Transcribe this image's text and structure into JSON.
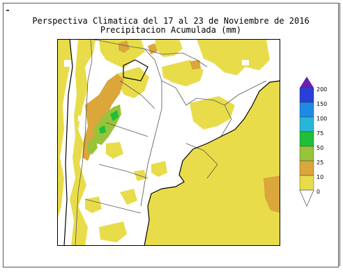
{
  "title": {
    "line1": "Perspectiva Climatica del 17 al 23 de Noviembre de 2016",
    "line2": "Precipitacion Acumulada (mm)"
  },
  "legend": {
    "levels": [
      "200",
      "150",
      "100",
      "75",
      "50",
      "25",
      "10",
      "0"
    ],
    "colors": {
      "above_200": "#6a1fb3",
      "150_200": "#2a3fd8",
      "100_150": "#1f8ae6",
      "75_100": "#27b7d6",
      "50_75": "#1fbf3a",
      "25_50": "#97c43a",
      "10_25": "#dba63a",
      "0_10": "#e8dc4a",
      "below_0": "#ffffff"
    }
  },
  "map_colors": {
    "no_rain": "#ffffff",
    "light": "#e8dc4a",
    "moderate": "#dba63a",
    "heavy": "#97c43a",
    "very_heavy": "#1fbf3a",
    "ocean_bg": "#e8dc4a",
    "borders": "#555555",
    "coast": "#000000"
  }
}
